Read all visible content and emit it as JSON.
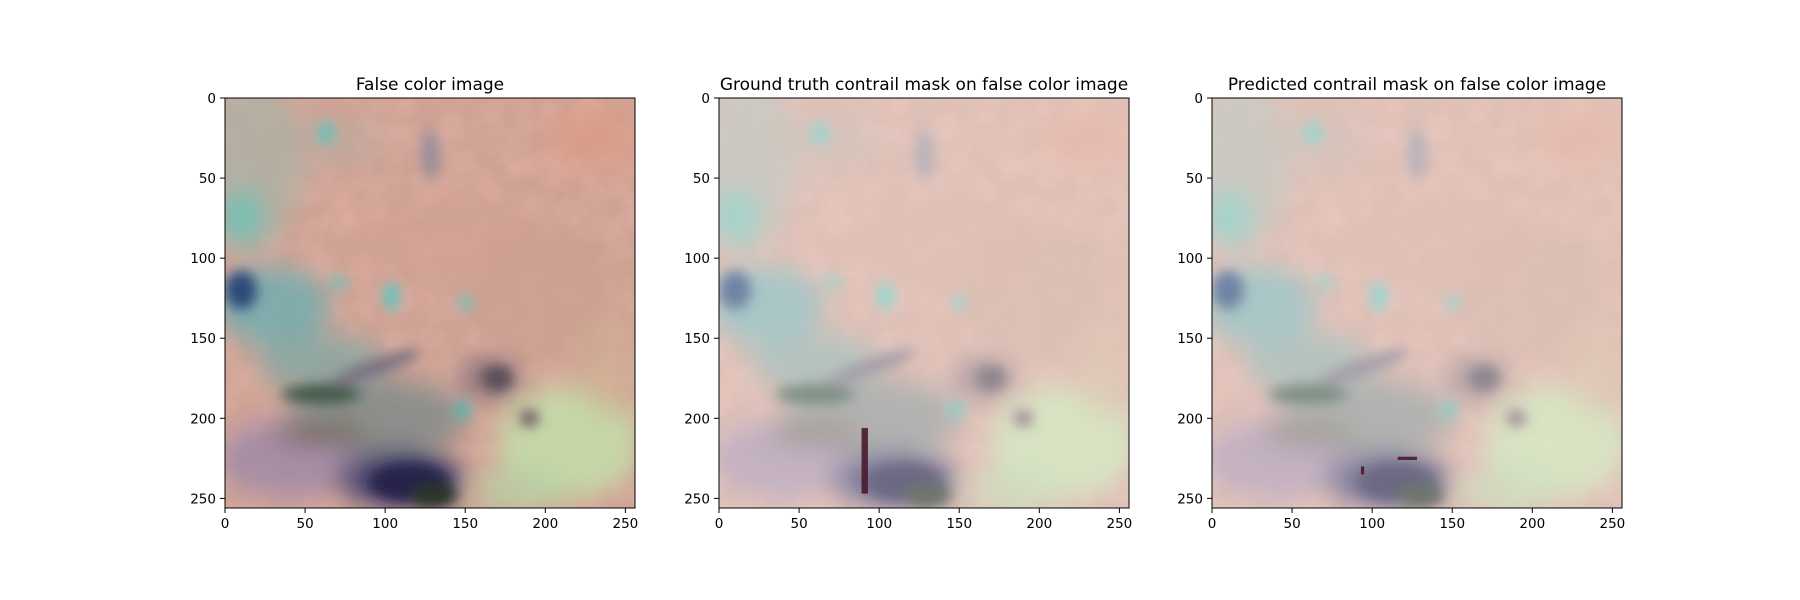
{
  "colors": {
    "background": "#ffffff",
    "axis": "#000000",
    "mask": "#4a1a2c",
    "teal": "#5fc4bd",
    "salmon": "#e89a88",
    "navy": "#2a2a60",
    "yellowgreen": "#c8e0a0"
  },
  "chart_data": [
    {
      "type": "image",
      "title": "False color image",
      "xlim": [
        0,
        256
      ],
      "ylim": [
        256,
        0
      ],
      "xticks": [
        0,
        50,
        100,
        150,
        200,
        250
      ],
      "yticks": [
        0,
        50,
        100,
        150,
        200,
        250
      ],
      "xtick_labels": [
        "0",
        "50",
        "100",
        "150",
        "200",
        "250"
      ],
      "ytick_labels": [
        "0",
        "50",
        "100",
        "150",
        "200",
        "250"
      ],
      "faded": false,
      "mask_regions": []
    },
    {
      "type": "image",
      "title": "Ground truth contrail mask on false color image",
      "xlim": [
        0,
        256
      ],
      "ylim": [
        256,
        0
      ],
      "xticks": [
        0,
        50,
        100,
        150,
        200,
        250
      ],
      "yticks": [
        0,
        50,
        100,
        150,
        200,
        250
      ],
      "xtick_labels": [
        "0",
        "50",
        "100",
        "150",
        "200",
        "250"
      ],
      "ytick_labels": [
        "0",
        "50",
        "100",
        "150",
        "200",
        "250"
      ],
      "faded": true,
      "mask_regions": [
        {
          "x0": 89,
          "x1": 93,
          "y0": 206,
          "y1": 247
        }
      ]
    },
    {
      "type": "image",
      "title": "Predicted contrail mask on false color image",
      "xlim": [
        0,
        256
      ],
      "ylim": [
        256,
        0
      ],
      "xticks": [
        0,
        50,
        100,
        150,
        200,
        250
      ],
      "yticks": [
        0,
        50,
        100,
        150,
        200,
        250
      ],
      "xtick_labels": [
        "0",
        "50",
        "100",
        "150",
        "200",
        "250"
      ],
      "ytick_labels": [
        "0",
        "50",
        "100",
        "150",
        "200",
        "250"
      ],
      "faded": true,
      "mask_regions": [
        {
          "x0": 93,
          "x1": 95,
          "y0": 230,
          "y1": 235
        },
        {
          "x0": 116,
          "x1": 128,
          "y0": 224,
          "y1": 226
        }
      ]
    }
  ]
}
